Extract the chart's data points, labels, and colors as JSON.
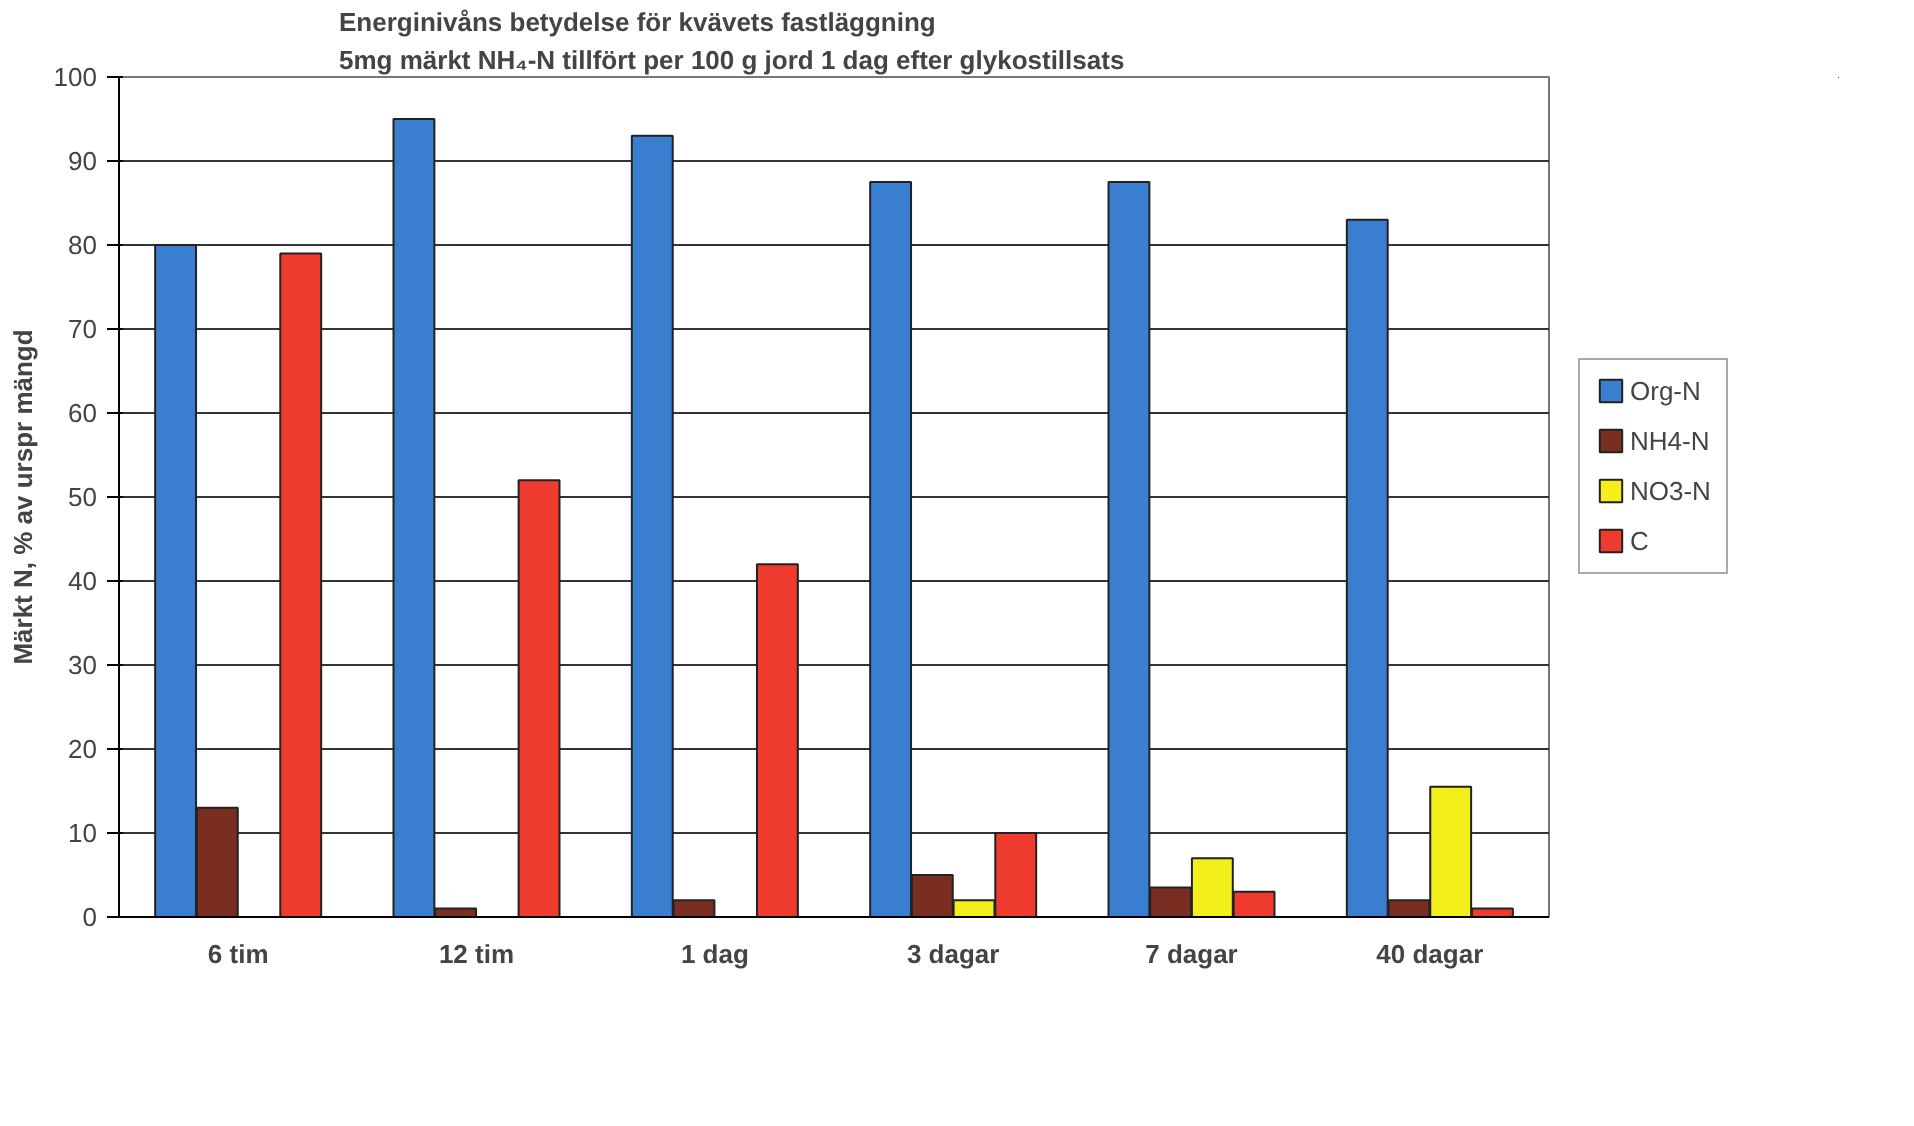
{
  "chart_data": {
    "type": "bar",
    "title": "Energinivåns betydelse för kvävets fastläggning",
    "subtitle": "5mg märkt NH₄-N tillfört per 100 g jord 1 dag efter glykostillsats",
    "ylabel": "Märkt N, % av urspr mängd",
    "categories": [
      "6 tim",
      "12 tim",
      "1 dag",
      "3 dagar",
      "7 dagar",
      "40 dagar"
    ],
    "series": [
      {
        "name": "Org-N",
        "color": "#3a7fcf",
        "values": [
          80,
          95,
          93,
          87.5,
          87.5,
          83
        ]
      },
      {
        "name": "NH4-N",
        "color": "#7a2e22",
        "values": [
          13,
          1,
          2,
          5,
          3.5,
          2
        ]
      },
      {
        "name": "NO3-N",
        "color": "#f2ef1a",
        "values": [
          0,
          0,
          0,
          2,
          7,
          15.5
        ]
      },
      {
        "name": "C",
        "color": "#ee3b2e",
        "values": [
          79,
          52,
          42,
          10,
          3,
          1
        ]
      }
    ],
    "ylim": [
      0,
      100
    ],
    "yticks": [
      0,
      10,
      20,
      30,
      40,
      50,
      60,
      70,
      80,
      90,
      100
    ],
    "grid": "y",
    "legend": "right"
  }
}
